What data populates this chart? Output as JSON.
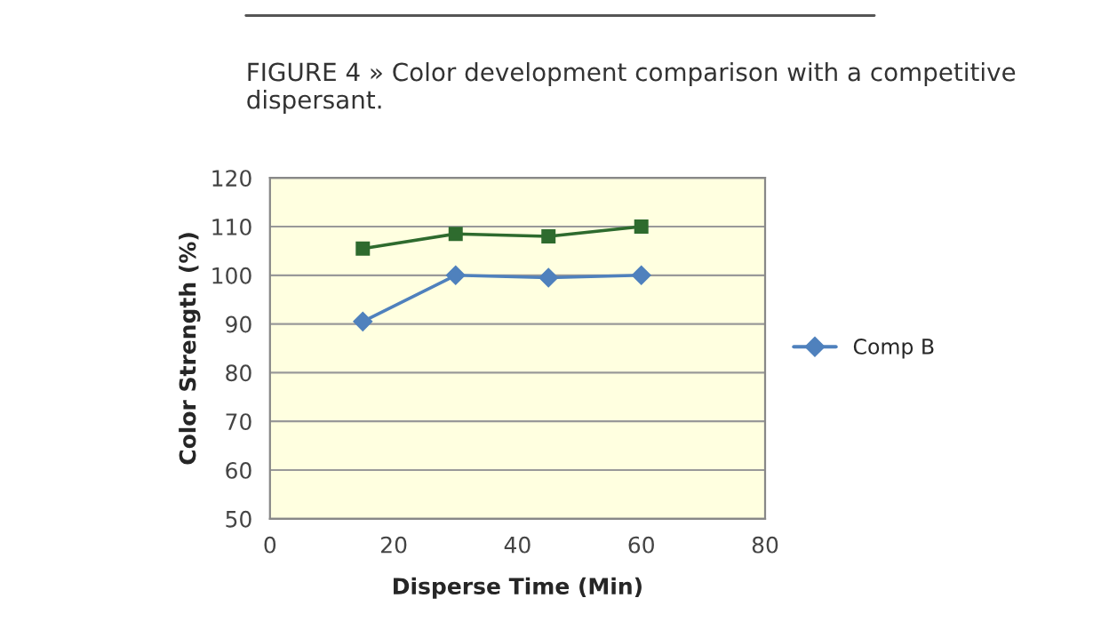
{
  "chart_data": {
    "type": "line",
    "title": "FIGURE 4 » Color development comparison with a competitive dispersant.",
    "xlabel": "Disperse Time (Min)",
    "ylabel": "Color Strength (%)",
    "series": [
      {
        "name": "Comp B",
        "color": "#4f81bd",
        "marker": "diamond",
        "x": [
          15,
          30,
          45,
          60
        ],
        "values": [
          90.5,
          100,
          99.5,
          100
        ]
      },
      {
        "color": "#2e6b2e",
        "marker": "square",
        "x": [
          15,
          30,
          45,
          60
        ],
        "values": [
          105.5,
          108.5,
          108,
          110
        ]
      }
    ],
    "xlim": [
      0,
      80
    ],
    "xticks": [
      0,
      20,
      40,
      60,
      80
    ],
    "ylim": [
      50,
      120
    ],
    "yticks": [
      50,
      60,
      70,
      80,
      90,
      100,
      110,
      120
    ],
    "grid": "y",
    "legend": "right"
  }
}
